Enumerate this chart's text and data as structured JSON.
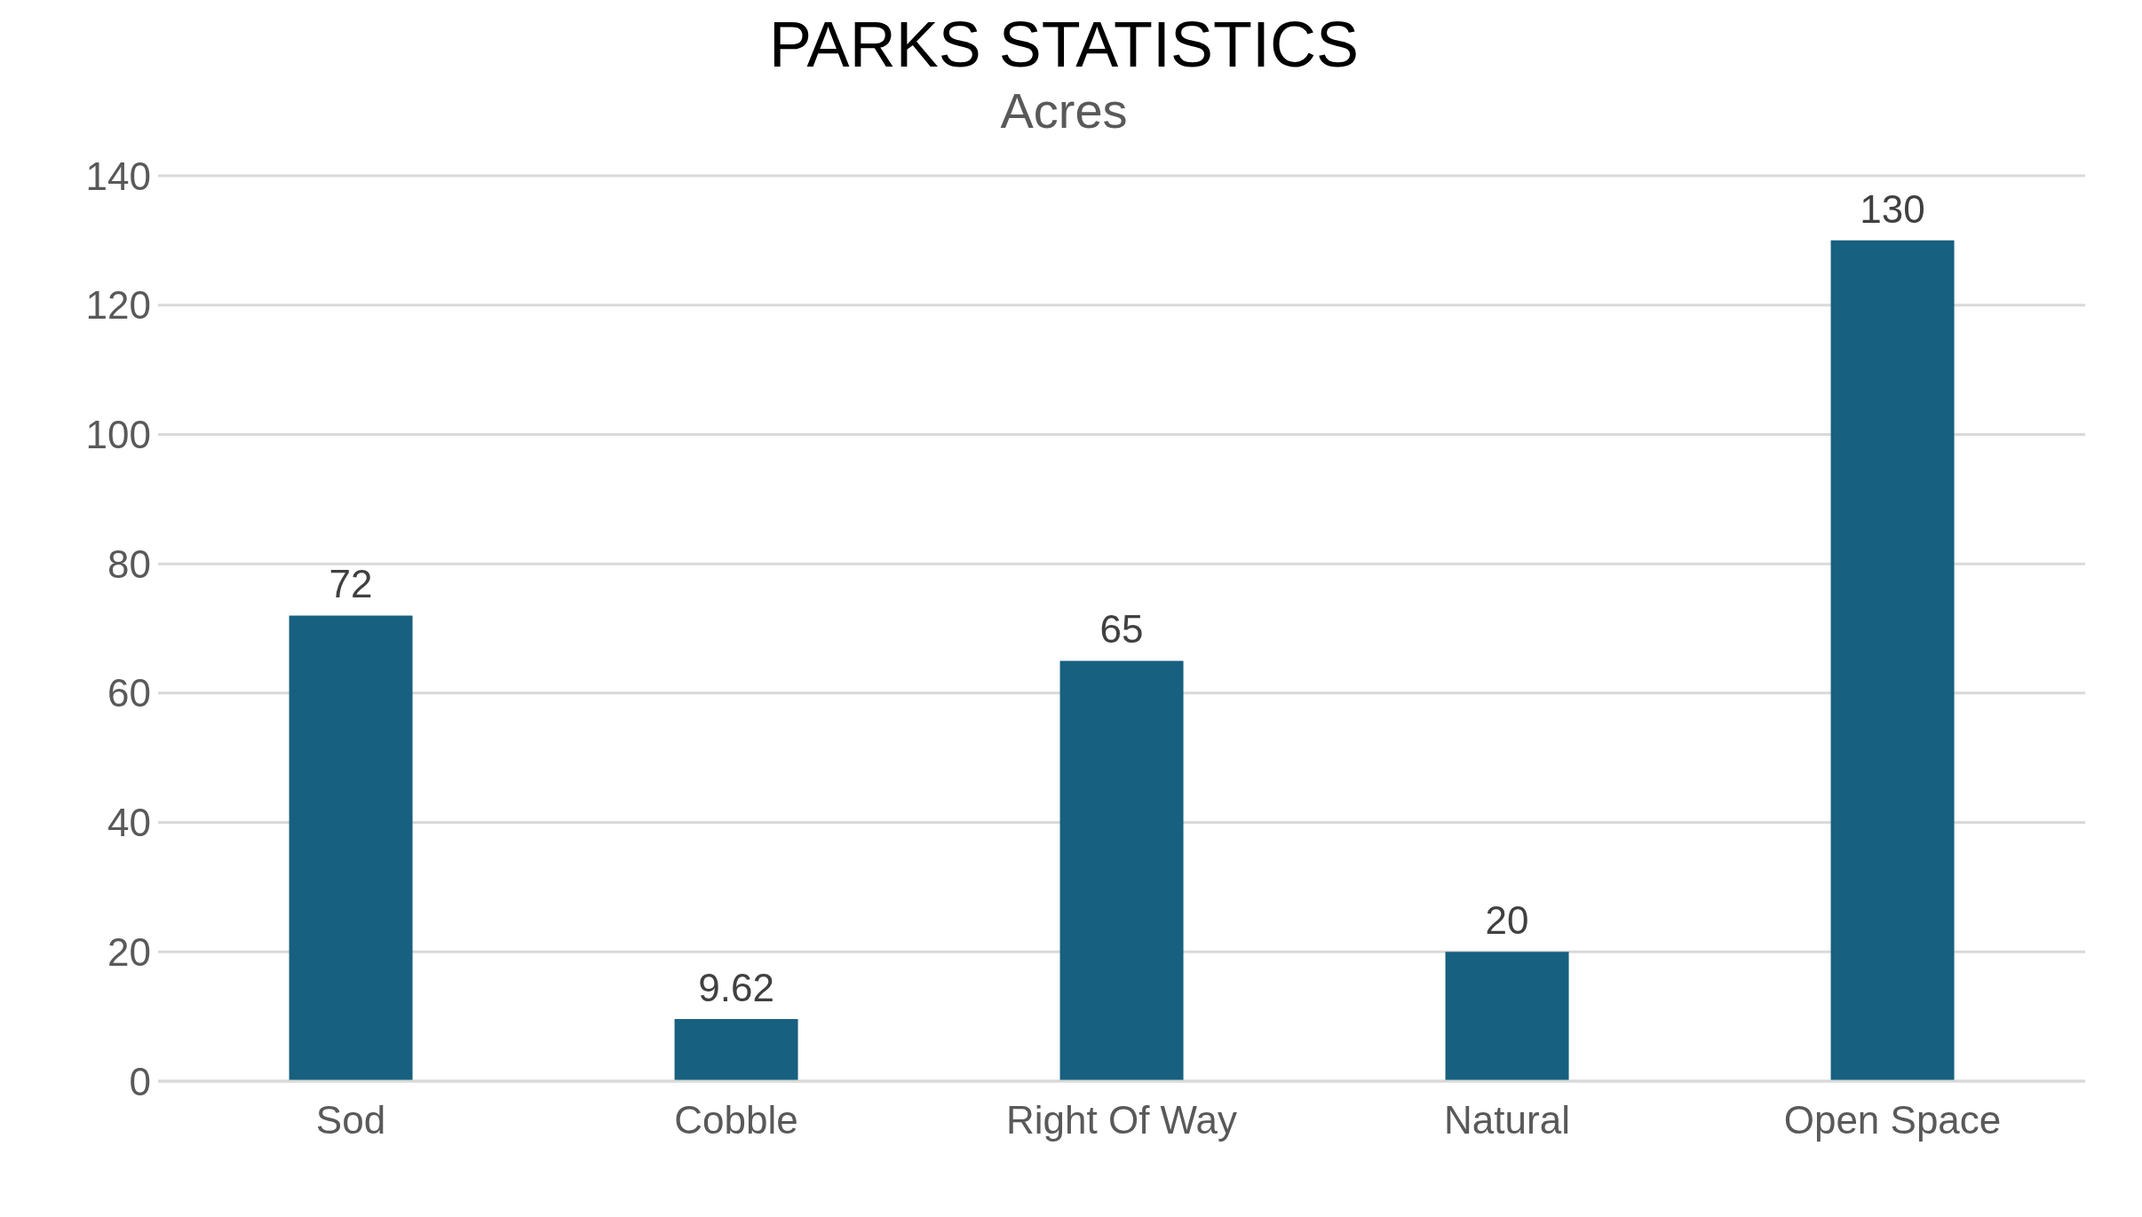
{
  "chart_data": {
    "type": "bar",
    "title": "PARKS STATISTICS",
    "subtitle": "Acres",
    "categories": [
      "Sod",
      "Cobble",
      "Right Of Way",
      "Natural",
      "Open Space"
    ],
    "values": [
      72,
      9.62,
      65,
      20,
      130
    ],
    "color": "#17607f",
    "ylim": [
      0,
      140
    ],
    "yticks": [
      0,
      20,
      40,
      60,
      80,
      100,
      120,
      140
    ],
    "grid": "y",
    "data_labels": true
  }
}
